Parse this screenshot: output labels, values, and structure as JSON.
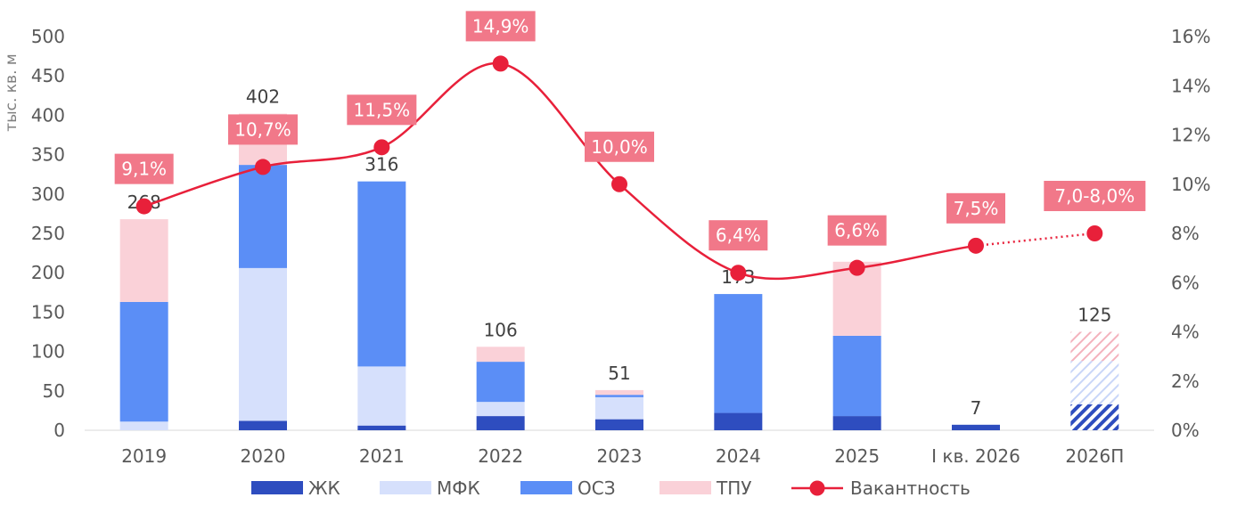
{
  "chart_data": {
    "type": "bar",
    "stacked": true,
    "categories": [
      "2019",
      "2020",
      "2021",
      "2022",
      "2023",
      "2024",
      "2025",
      "I кв. 2026",
      "2026П"
    ],
    "ylabel": "тыс. кв. м",
    "ylim": [
      0,
      500
    ],
    "yticks": [
      0,
      50,
      100,
      150,
      200,
      250,
      300,
      350,
      400,
      450,
      500
    ],
    "y2lim": [
      0,
      16
    ],
    "y2ticks": [
      "0%",
      "2%",
      "4%",
      "6%",
      "8%",
      "10%",
      "12%",
      "14%",
      "16%"
    ],
    "forecast_category": "2026П",
    "series": [
      {
        "name": "ЖК",
        "color": "#2E4DBF",
        "values": [
          0,
          12,
          6,
          18,
          14,
          22,
          18,
          7,
          33
        ]
      },
      {
        "name": "МФК",
        "color": "#D6E0FC",
        "values": [
          11,
          194,
          75,
          18,
          28,
          0,
          0,
          0,
          55
        ]
      },
      {
        "name": "ОСЗ",
        "color": "#5B8EF6",
        "values": [
          152,
          131,
          235,
          51,
          3,
          151,
          102,
          0,
          0
        ]
      },
      {
        "name": "ТПУ",
        "color": "#FAD1D8",
        "values": [
          105,
          65,
          0,
          19,
          6,
          0,
          94,
          0,
          37
        ]
      }
    ],
    "totals": [
      "268",
      "402",
      "316",
      "106",
      "51",
      "173",
      "",
      "7",
      "125"
    ],
    "vacancy": {
      "name": "Вакантность",
      "color": "#E8203A",
      "values": [
        9.1,
        10.7,
        11.5,
        14.9,
        10.0,
        6.4,
        6.6,
        7.5,
        8.0
      ],
      "labels": [
        "9,1%",
        "10,7%",
        "11,5%",
        "14,9%",
        "10,0%",
        "6,4%",
        "6,6%",
        "7,5%",
        "7,0-8,0%"
      ]
    },
    "legend": [
      "ЖК",
      "МФК",
      "ОСЗ",
      "ТПУ",
      "Вакантность"
    ],
    "legend_position": "bottom",
    "grid": false
  }
}
